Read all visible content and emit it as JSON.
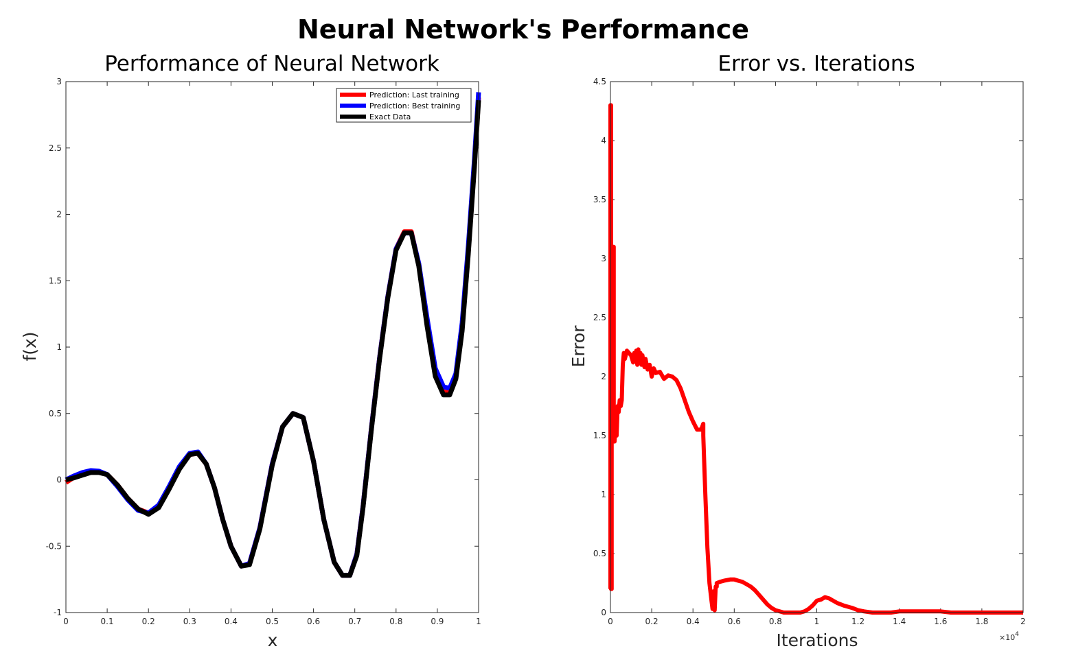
{
  "figure": {
    "suptitle": "Neural Network's Performance"
  },
  "chart_data": [
    {
      "type": "line",
      "title": "Performance of Neural Network",
      "xlabel": "x",
      "ylabel": "f(x)",
      "xlim": [
        0,
        1
      ],
      "ylim": [
        -1,
        3
      ],
      "xticks": [
        0,
        0.1,
        0.2,
        0.3,
        0.4,
        0.5,
        0.6,
        0.7,
        0.8,
        0.9,
        1
      ],
      "xtick_labels": [
        "0",
        "0.1",
        "0.2",
        "0.3",
        "0.4",
        "0.5",
        "0.6",
        "0.7",
        "0.8",
        "0.9",
        "1"
      ],
      "yticks": [
        -1,
        -0.5,
        0,
        0.5,
        1,
        1.5,
        2,
        2.5,
        3
      ],
      "ytick_labels": [
        "-1",
        "-0.5",
        "0",
        "0.5",
        "1",
        "1.5",
        "2",
        "2.5",
        "3"
      ],
      "grid": false,
      "legend_position": "top-right",
      "series": [
        {
          "name": "Prediction: Last training",
          "color": "#ff0000",
          "x": [
            0,
            0.02,
            0.04,
            0.06,
            0.08,
            0.1,
            0.125,
            0.15,
            0.175,
            0.2,
            0.225,
            0.25,
            0.275,
            0.3,
            0.32,
            0.34,
            0.36,
            0.38,
            0.4,
            0.425,
            0.445,
            0.47,
            0.5,
            0.525,
            0.55,
            0.575,
            0.6,
            0.625,
            0.65,
            0.67,
            0.688,
            0.705,
            0.72,
            0.74,
            0.76,
            0.78,
            0.8,
            0.82,
            0.837,
            0.855,
            0.875,
            0.895,
            0.915,
            0.93,
            0.945,
            0.96,
            0.975,
            0.99,
            1
          ],
          "y": [
            -0.02,
            0.02,
            0.045,
            0.06,
            0.06,
            0.04,
            -0.04,
            -0.14,
            -0.22,
            -0.25,
            -0.2,
            -0.06,
            0.09,
            0.19,
            0.2,
            0.12,
            -0.06,
            -0.3,
            -0.5,
            -0.65,
            -0.63,
            -0.36,
            0.12,
            0.4,
            0.5,
            0.47,
            0.14,
            -0.3,
            -0.62,
            -0.72,
            -0.72,
            -0.56,
            -0.2,
            0.38,
            0.92,
            1.38,
            1.74,
            1.87,
            1.87,
            1.62,
            1.18,
            0.8,
            0.66,
            0.66,
            0.78,
            1.15,
            1.72,
            2.38,
            2.88
          ]
        },
        {
          "name": "Prediction: Best training",
          "color": "#0000ff",
          "x": [
            0,
            0.02,
            0.04,
            0.06,
            0.08,
            0.1,
            0.125,
            0.15,
            0.175,
            0.2,
            0.225,
            0.25,
            0.275,
            0.3,
            0.32,
            0.34,
            0.36,
            0.38,
            0.4,
            0.425,
            0.445,
            0.47,
            0.5,
            0.525,
            0.55,
            0.575,
            0.6,
            0.625,
            0.65,
            0.67,
            0.688,
            0.705,
            0.72,
            0.74,
            0.76,
            0.78,
            0.8,
            0.82,
            0.837,
            0.855,
            0.875,
            0.895,
            0.915,
            0.93,
            0.945,
            0.96,
            0.975,
            0.99,
            1
          ],
          "y": [
            0,
            0.03,
            0.055,
            0.07,
            0.065,
            0.04,
            -0.05,
            -0.15,
            -0.23,
            -0.25,
            -0.19,
            -0.05,
            0.1,
            0.2,
            0.21,
            0.12,
            -0.06,
            -0.3,
            -0.5,
            -0.65,
            -0.63,
            -0.36,
            0.12,
            0.4,
            0.5,
            0.47,
            0.14,
            -0.3,
            -0.62,
            -0.72,
            -0.72,
            -0.56,
            -0.2,
            0.38,
            0.92,
            1.38,
            1.74,
            1.86,
            1.86,
            1.63,
            1.22,
            0.84,
            0.7,
            0.69,
            0.8,
            1.18,
            1.76,
            2.42,
            2.92
          ]
        },
        {
          "name": "Exact Data",
          "color": "#000000",
          "x": [
            0,
            0.02,
            0.04,
            0.06,
            0.08,
            0.1,
            0.125,
            0.15,
            0.175,
            0.2,
            0.225,
            0.25,
            0.275,
            0.3,
            0.32,
            0.34,
            0.36,
            0.38,
            0.4,
            0.425,
            0.445,
            0.47,
            0.5,
            0.525,
            0.55,
            0.575,
            0.6,
            0.625,
            0.65,
            0.67,
            0.688,
            0.705,
            0.72,
            0.74,
            0.76,
            0.78,
            0.8,
            0.82,
            0.837,
            0.855,
            0.875,
            0.895,
            0.915,
            0.93,
            0.945,
            0.96,
            0.975,
            0.99,
            1
          ],
          "y": [
            0,
            0.015,
            0.035,
            0.055,
            0.055,
            0.04,
            -0.04,
            -0.14,
            -0.22,
            -0.26,
            -0.21,
            -0.07,
            0.08,
            0.19,
            0.2,
            0.12,
            -0.06,
            -0.3,
            -0.5,
            -0.65,
            -0.64,
            -0.37,
            0.11,
            0.4,
            0.5,
            0.47,
            0.14,
            -0.3,
            -0.62,
            -0.72,
            -0.72,
            -0.57,
            -0.21,
            0.37,
            0.91,
            1.37,
            1.73,
            1.86,
            1.86,
            1.61,
            1.16,
            0.78,
            0.64,
            0.64,
            0.76,
            1.12,
            1.7,
            2.36,
            2.86
          ]
        }
      ]
    },
    {
      "type": "line",
      "title": "Error vs. Iterations",
      "xlabel": "Iterations",
      "ylabel": "Error",
      "xlim": [
        0,
        20000
      ],
      "ylim": [
        0,
        4.5
      ],
      "xticks": [
        0,
        2000,
        4000,
        6000,
        8000,
        10000,
        12000,
        14000,
        16000,
        18000,
        20000
      ],
      "xtick_labels": [
        "0",
        "0.2",
        "0.4",
        "0.6",
        "0.8",
        "1",
        "1.2",
        "1.4",
        "1.6",
        "1.8",
        "2"
      ],
      "x_exponent_label": "×10",
      "x_exponent_power": "4",
      "yticks": [
        0,
        0.5,
        1,
        1.5,
        2,
        2.5,
        3,
        3.5,
        4,
        4.5
      ],
      "ytick_labels": [
        "0",
        "0.5",
        "1",
        "1.5",
        "2",
        "2.5",
        "3",
        "3.5",
        "4",
        "4.5"
      ],
      "grid": false,
      "series": [
        {
          "color": "#ff0000",
          "x": [
            0,
            0,
            30,
            30,
            60,
            60,
            100,
            100,
            130,
            130,
            160,
            160,
            200,
            250,
            300,
            350,
            400,
            450,
            500,
            550,
            600,
            650,
            700,
            800,
            900,
            1000,
            1100,
            1150,
            1200,
            1250,
            1300,
            1350,
            1400,
            1450,
            1500,
            1550,
            1600,
            1650,
            1700,
            1800,
            1900,
            2000,
            2100,
            2200,
            2400,
            2600,
            2800,
            3000,
            3200,
            3400,
            3600,
            3800,
            4000,
            4200,
            4400,
            4500,
            4500,
            4600,
            4700,
            4800,
            4900,
            4950,
            5000,
            5050,
            5100,
            5150,
            5150,
            5300,
            5500,
            5800,
            6000,
            6200,
            6400,
            6600,
            6800,
            7000,
            7200,
            7400,
            7600,
            7800,
            8000,
            8200,
            8400,
            8600,
            8800,
            9000,
            9200,
            9400,
            9600,
            9800,
            10000,
            10200,
            10400,
            10600,
            10800,
            11000,
            11300,
            11700,
            12000,
            12300,
            12700,
            13000,
            13300,
            13600,
            14000,
            14500,
            15000,
            15500,
            16000,
            16500,
            17000,
            17500,
            18000,
            18500,
            19000,
            19500,
            20000
          ],
          "y": [
            0.2,
            4.3,
            4.3,
            0.2,
            0.2,
            2.5,
            2.5,
            1.5,
            1.5,
            3.1,
            3.1,
            1.5,
            1.45,
            1.6,
            1.5,
            1.75,
            1.7,
            1.8,
            1.75,
            1.8,
            2.1,
            2.2,
            2.15,
            2.22,
            2.2,
            2.18,
            2.12,
            2.2,
            2.14,
            2.22,
            2.1,
            2.23,
            2.12,
            2.2,
            2.1,
            2.18,
            2.12,
            2.08,
            2.15,
            2.06,
            2.1,
            2.0,
            2.07,
            2.03,
            2.04,
            1.98,
            2.01,
            2.0,
            1.97,
            1.9,
            1.8,
            1.7,
            1.62,
            1.55,
            1.55,
            1.6,
            1.5,
            1.0,
            0.55,
            0.25,
            0.1,
            0.03,
            0.18,
            0.02,
            0.22,
            0.22,
            0.25,
            0.26,
            0.27,
            0.28,
            0.28,
            0.27,
            0.26,
            0.24,
            0.22,
            0.19,
            0.15,
            0.11,
            0.07,
            0.04,
            0.02,
            0.01,
            0.0,
            0.0,
            0.0,
            0.0,
            0.0,
            0.01,
            0.03,
            0.06,
            0.1,
            0.11,
            0.13,
            0.12,
            0.1,
            0.08,
            0.06,
            0.04,
            0.02,
            0.01,
            0.0,
            0.0,
            0.0,
            0.0,
            0.01,
            0.01,
            0.01,
            0.01,
            0.01,
            0.0,
            0.0,
            0.0,
            0.0,
            0.0,
            0.0,
            0.0,
            0.0
          ]
        }
      ]
    }
  ]
}
